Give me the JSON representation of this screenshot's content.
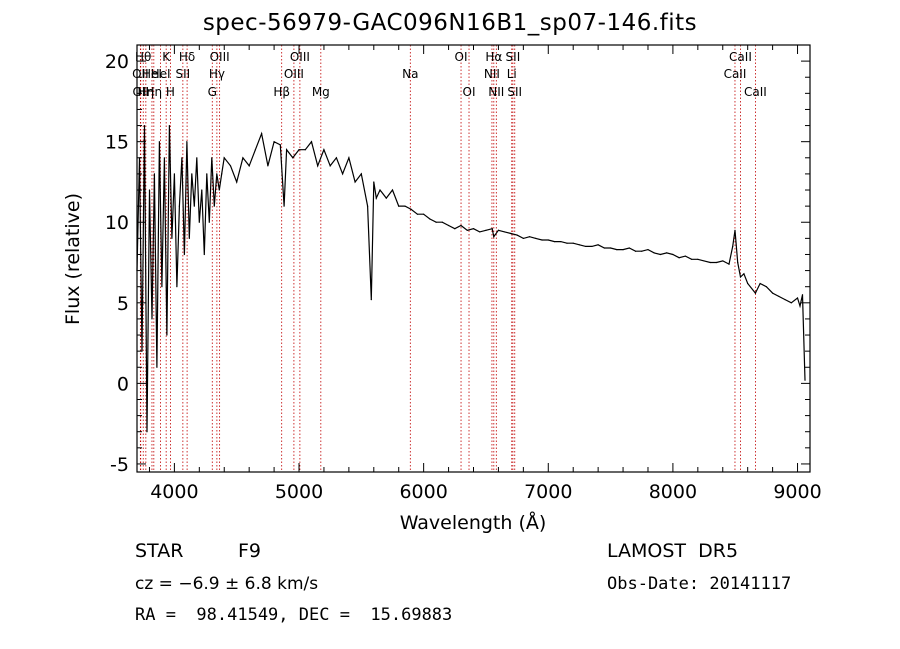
{
  "header": {
    "title": "spec-56979-GAC096N16B1_sp07-146.fits"
  },
  "info": {
    "object_type": "STAR",
    "subclass": "F9",
    "survey": "LAMOST  DR5",
    "cz": "cz = −6.9 ± 6.8 km/s",
    "obs_date": "Obs-Date: 20141117",
    "radec": "RA =  98.41549, DEC =  15.69883"
  },
  "chart_data": {
    "type": "line",
    "title": "spec-56979-GAC096N16B1_sp07-146.fits",
    "xlabel": "Wavelength (Å)",
    "ylabel": "Flux (relative)",
    "xlim": [
      3700,
      9100
    ],
    "ylim": [
      -5.5,
      21
    ],
    "xticks": [
      4000,
      5000,
      6000,
      7000,
      8000,
      9000
    ],
    "yticks": [
      -5,
      0,
      5,
      10,
      15,
      20
    ],
    "series": [
      {
        "color": "#000000",
        "x": [
          3700,
          3720,
          3740,
          3760,
          3780,
          3800,
          3820,
          3840,
          3860,
          3880,
          3900,
          3920,
          3940,
          3960,
          3980,
          4000,
          4020,
          4040,
          4060,
          4080,
          4100,
          4120,
          4140,
          4160,
          4180,
          4200,
          4220,
          4240,
          4260,
          4280,
          4300,
          4320,
          4340,
          4360,
          4380,
          4400,
          4450,
          4500,
          4550,
          4600,
          4650,
          4700,
          4750,
          4800,
          4850,
          4880,
          4900,
          4950,
          5000,
          5050,
          5100,
          5150,
          5200,
          5250,
          5300,
          5350,
          5400,
          5450,
          5500,
          5550,
          5580,
          5600,
          5620,
          5650,
          5700,
          5750,
          5800,
          5850,
          5900,
          5950,
          6000,
          6050,
          6100,
          6150,
          6200,
          6250,
          6300,
          6350,
          6400,
          6450,
          6500,
          6550,
          6563,
          6600,
          6650,
          6700,
          6750,
          6800,
          6850,
          6900,
          6950,
          7000,
          7050,
          7100,
          7150,
          7200,
          7250,
          7300,
          7350,
          7400,
          7450,
          7500,
          7550,
          7600,
          7650,
          7700,
          7750,
          7800,
          7850,
          7900,
          7950,
          8000,
          8050,
          8100,
          8150,
          8200,
          8250,
          8300,
          8350,
          8400,
          8450,
          8480,
          8498,
          8520,
          8542,
          8570,
          8600,
          8662,
          8700,
          8750,
          8800,
          8850,
          8900,
          8950,
          9000,
          9020,
          9040,
          9060
        ],
        "y": [
          7,
          14,
          2,
          16,
          -3,
          12,
          4,
          13,
          1,
          15,
          6,
          14,
          3,
          16,
          9,
          13,
          6,
          11,
          14,
          8,
          15,
          9,
          13,
          11,
          14,
          10,
          12,
          8,
          13,
          10,
          14,
          11,
          13,
          12,
          13,
          14,
          13.5,
          12.5,
          14,
          13.5,
          14.5,
          15.5,
          13.5,
          15,
          14.8,
          11,
          14.5,
          14,
          14.5,
          14.5,
          15,
          13.5,
          14.5,
          13.5,
          14,
          13,
          14,
          12.5,
          13,
          11,
          5.2,
          12.5,
          11.5,
          12,
          11.5,
          12,
          11,
          11,
          10.8,
          10.5,
          10.5,
          10.2,
          10,
          10,
          9.8,
          9.6,
          9.8,
          9.5,
          9.6,
          9.4,
          9.5,
          9.6,
          9.1,
          9.5,
          9.4,
          9.3,
          9.2,
          9.0,
          9.1,
          9.0,
          8.9,
          8.9,
          8.8,
          8.8,
          8.7,
          8.7,
          8.6,
          8.5,
          8.5,
          8.6,
          8.4,
          8.4,
          8.3,
          8.3,
          8.4,
          8.2,
          8.2,
          8.3,
          8.1,
          8.0,
          8.1,
          8.0,
          7.8,
          7.9,
          7.7,
          7.7,
          7.6,
          7.5,
          7.5,
          7.6,
          7.4,
          8.5,
          9.5,
          7.5,
          6.6,
          6.8,
          6.2,
          5.6,
          6.2,
          6.0,
          5.6,
          5.4,
          5.2,
          5.0,
          5.3,
          4.8,
          5.5,
          0.2
        ]
      }
    ],
    "lines": [
      {
        "wl": 3750,
        "label": "Hθ",
        "row": 0
      },
      {
        "wl": 3771,
        "label": "Hη",
        "row": 2
      },
      {
        "wl": 3727,
        "label": "OII",
        "row": 1
      },
      {
        "wl": 3730,
        "label": "OII",
        "row": 2
      },
      {
        "wl": 3835,
        "label": "Hη",
        "row": 2
      },
      {
        "wl": 3820,
        "label": "HeI",
        "row": 1
      },
      {
        "wl": 3889,
        "label": "HeI",
        "row": 1
      },
      {
        "wl": 3934,
        "label": "K",
        "row": 0
      },
      {
        "wl": 3968,
        "label": "H",
        "row": 2
      },
      {
        "wl": 4068,
        "label": "SII",
        "row": 1
      },
      {
        "wl": 4102,
        "label": "Hδ",
        "row": 0
      },
      {
        "wl": 4304,
        "label": "G",
        "row": 2
      },
      {
        "wl": 4341,
        "label": "Hγ",
        "row": 1
      },
      {
        "wl": 4363,
        "label": "OIII",
        "row": 0
      },
      {
        "wl": 4861,
        "label": "Hβ",
        "row": 2
      },
      {
        "wl": 4959,
        "label": "OIII",
        "row": 1
      },
      {
        "wl": 5007,
        "label": "OIII",
        "row": 0
      },
      {
        "wl": 5175,
        "label": "Mg",
        "row": 2
      },
      {
        "wl": 5893,
        "label": "Na",
        "row": 1
      },
      {
        "wl": 6300,
        "label": "OI",
        "row": 0
      },
      {
        "wl": 6364,
        "label": "OI",
        "row": 2
      },
      {
        "wl": 6548,
        "label": "NII",
        "row": 1
      },
      {
        "wl": 6563,
        "label": "Hα",
        "row": 0
      },
      {
        "wl": 6583,
        "label": "NII",
        "row": 2
      },
      {
        "wl": 6707,
        "label": "Li",
        "row": 1
      },
      {
        "wl": 6716,
        "label": "SII",
        "row": 0
      },
      {
        "wl": 6731,
        "label": "SII",
        "row": 2
      },
      {
        "wl": 8498,
        "label": "CaII",
        "row": 1
      },
      {
        "wl": 8542,
        "label": "CaII",
        "row": 0
      },
      {
        "wl": 8662,
        "label": "CaII",
        "row": 2
      }
    ]
  }
}
